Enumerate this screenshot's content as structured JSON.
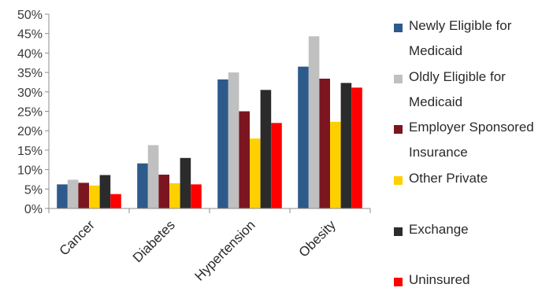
{
  "chart_data": {
    "type": "bar",
    "categories": [
      "Cancer",
      "Diabetes",
      "Hypertension",
      "Obesity"
    ],
    "series": [
      {
        "name": "Newly Eligible for Medicaid",
        "color": "#2e5a8b",
        "values": [
          6.2,
          11.6,
          33.2,
          36.5
        ]
      },
      {
        "name": "Oldly Eligible for Medicaid",
        "color": "#c0c0c0",
        "values": [
          7.4,
          16.3,
          35.0,
          44.3
        ]
      },
      {
        "name": "Employer Sponsored Insurance",
        "color": "#7b1620",
        "values": [
          6.6,
          8.7,
          25.0,
          33.4
        ]
      },
      {
        "name": "Other Private",
        "color": "#ffd000",
        "values": [
          5.9,
          6.5,
          18.0,
          22.3
        ]
      },
      {
        "name": "Exchange",
        "color": "#2b2b2b",
        "values": [
          8.6,
          13.0,
          30.5,
          32.3
        ]
      },
      {
        "name": "Uninsured",
        "color": "#ff0000",
        "values": [
          3.7,
          6.2,
          22.0,
          31.1
        ]
      }
    ],
    "ylim": [
      0,
      50
    ],
    "yticks": [
      "0%",
      "5%",
      "10%",
      "15%",
      "20%",
      "25%",
      "30%",
      "35%",
      "40%",
      "45%",
      "50%"
    ],
    "grid": false,
    "legend_position": "right"
  }
}
